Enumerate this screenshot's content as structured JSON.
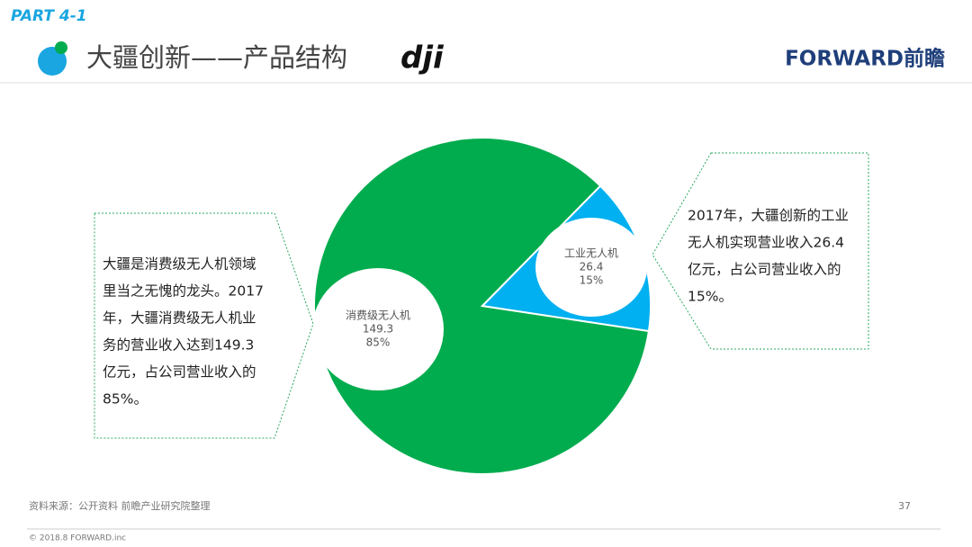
{
  "part": "PART 4-1",
  "title": "大疆创新——产品结构",
  "logo": "dji",
  "brand": "FORWARD前瞻",
  "chart_data": {
    "type": "pie",
    "categories": [
      "消费级无人机",
      "工业无人机"
    ],
    "values": [
      149.3,
      26.4
    ],
    "percent_labels": [
      "85%",
      "15%"
    ],
    "colors": [
      "#00ac4e",
      "#00b0f0"
    ]
  },
  "left_note": [
    "大疆是消费级无人机领域",
    "里当之无愧的龙头。2017",
    "年，大疆消费级无人机业",
    "务的营业收入达到149.3",
    "亿元，占公司营业收入的",
    "85%。"
  ],
  "right_note": [
    "2017年，大疆创新的工业",
    "无人机实现营业收入26.4",
    "亿元，占公司营业收入的",
    "15%。"
  ],
  "source": "资料来源：公开资料 前瞻产业研究院整理",
  "page_number": "37",
  "copyright": "© 2018.8 FORWARD.inc"
}
